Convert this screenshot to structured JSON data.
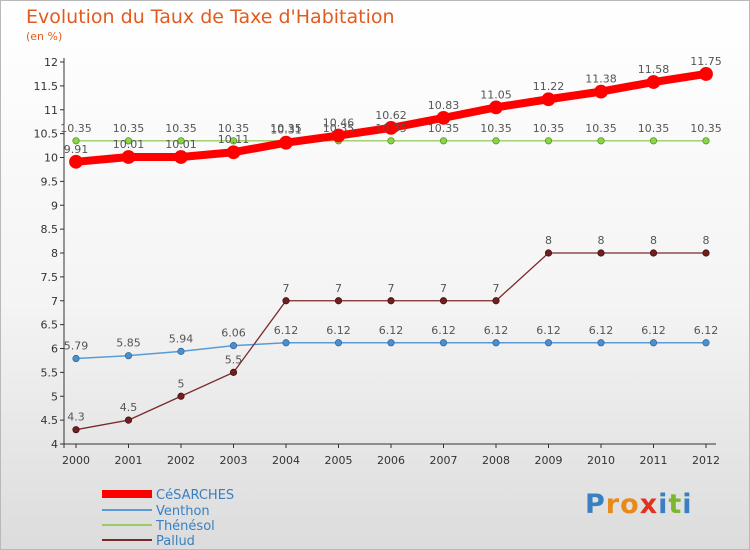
{
  "chart_data": {
    "type": "line",
    "title": "Evolution du Taux de Taxe d'Habitation",
    "subtitle": "(en %)",
    "x": [
      "2000",
      "2001",
      "2002",
      "2003",
      "2004",
      "2005",
      "2006",
      "2007",
      "2008",
      "2009",
      "2010",
      "2011",
      "2012"
    ],
    "ylim": [
      4,
      12
    ],
    "yticks": [
      "4",
      "4.5",
      "5",
      "5.5",
      "6",
      "6.5",
      "7",
      "7.5",
      "8",
      "8.5",
      "9",
      "9.5",
      "10",
      "10.5",
      "11",
      "11.5",
      "12"
    ],
    "grid": false,
    "legend_position": "bottom-left",
    "series": [
      {
        "name": "CéSARCHES",
        "color": "#ff0000",
        "values": [
          9.91,
          10.01,
          10.01,
          10.11,
          10.31,
          10.46,
          10.62,
          10.83,
          11.05,
          11.22,
          11.38,
          11.58,
          11.75
        ],
        "labels": [
          "9.91",
          "10.01",
          "10.01",
          "10.11",
          "10.31",
          "10.46",
          "10.62",
          "10.83",
          "11.05",
          "11.22",
          "11.38",
          "11.58",
          "11.75"
        ]
      },
      {
        "name": "Venthon",
        "color": "#5b9bd5",
        "values": [
          5.79,
          5.85,
          5.94,
          6.06,
          6.12,
          6.12,
          6.12,
          6.12,
          6.12,
          6.12,
          6.12,
          6.12,
          6.12
        ],
        "labels": [
          "5.79",
          "5.85",
          "5.94",
          "6.06",
          "6.12",
          "6.12",
          "6.12",
          "6.12",
          "6.12",
          "6.12",
          "6.12",
          "6.12",
          "6.12"
        ]
      },
      {
        "name": "Thénésol",
        "color": "#99cc66",
        "values": [
          10.35,
          10.35,
          10.35,
          10.35,
          10.35,
          10.35,
          10.35,
          10.35,
          10.35,
          10.35,
          10.35,
          10.35,
          10.35
        ],
        "labels": [
          "10.35",
          "10.35",
          "10.35",
          "10.35",
          "10.35",
          "10.35",
          "10.35",
          "10.35",
          "10.35",
          "10.35",
          "10.35",
          "10.35",
          "10.35"
        ]
      },
      {
        "name": "Pallud",
        "color": "#7a2a2a",
        "values": [
          4.3,
          4.5,
          5,
          5.5,
          7,
          7,
          7,
          7,
          7,
          8,
          8,
          8,
          8
        ],
        "labels": [
          "4.3",
          "4.5",
          "5",
          "5.5",
          "7",
          "7",
          "7",
          "7",
          "7",
          "8",
          "8",
          "8",
          "8"
        ]
      }
    ]
  },
  "logo": {
    "text": "Proxiti",
    "letters": [
      "P",
      "r",
      "o",
      "x",
      "i",
      "t",
      "i"
    ]
  }
}
